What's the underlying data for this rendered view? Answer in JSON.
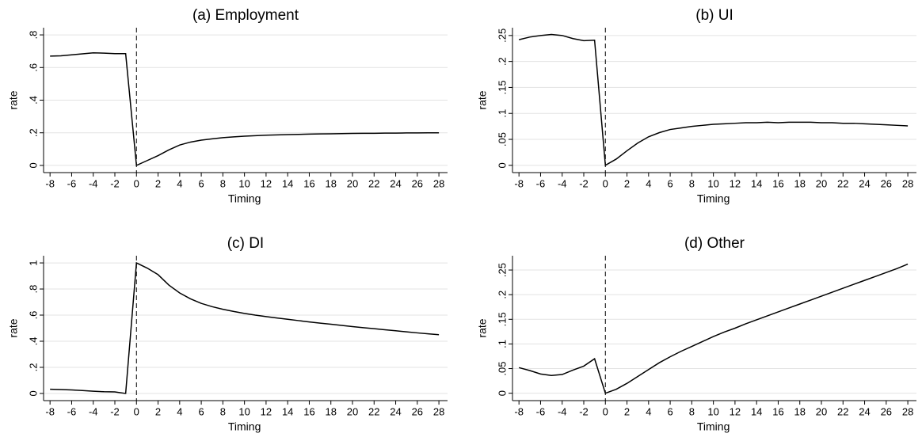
{
  "chart_data": [
    {
      "type": "line",
      "title": "(a) Employment",
      "xlabel": "Timing",
      "ylabel": "rate",
      "color": "#000000",
      "grid": true,
      "vline": 0,
      "x": [
        -8,
        -7,
        -6,
        -5,
        -4,
        -3,
        -2,
        -1,
        0,
        1,
        2,
        3,
        4,
        5,
        6,
        7,
        8,
        9,
        10,
        11,
        12,
        13,
        14,
        15,
        16,
        17,
        18,
        19,
        20,
        21,
        22,
        23,
        24,
        25,
        26,
        27,
        28
      ],
      "values": [
        0.67,
        0.672,
        0.678,
        0.684,
        0.69,
        0.688,
        0.685,
        0.685,
        0.0,
        0.03,
        0.06,
        0.095,
        0.125,
        0.143,
        0.155,
        0.163,
        0.17,
        0.175,
        0.179,
        0.182,
        0.185,
        0.187,
        0.189,
        0.19,
        0.192,
        0.193,
        0.194,
        0.195,
        0.196,
        0.197,
        0.197,
        0.198,
        0.198,
        0.199,
        0.199,
        0.2,
        0.2
      ],
      "xlim": [
        -8.6,
        28.8
      ],
      "xticks": [
        -8,
        -6,
        -4,
        -2,
        0,
        2,
        4,
        6,
        8,
        10,
        12,
        14,
        16,
        18,
        20,
        22,
        24,
        26,
        28
      ],
      "ylim": [
        -0.044,
        0.844
      ],
      "yticks": [
        0,
        {
          "value": 0.2,
          "label": ".2"
        },
        {
          "value": 0.4,
          "label": ".4"
        },
        {
          "value": 0.6,
          "label": ".6"
        },
        {
          "value": 0.8,
          "label": ".8"
        }
      ]
    },
    {
      "type": "line",
      "title": "(b) UI",
      "xlabel": "Timing",
      "ylabel": "rate",
      "color": "#000000",
      "grid": true,
      "vline": 0,
      "x": [
        -8,
        -7,
        -6,
        -5,
        -4,
        -3,
        -2,
        -1,
        0,
        1,
        2,
        3,
        4,
        5,
        6,
        7,
        8,
        9,
        10,
        11,
        12,
        13,
        14,
        15,
        16,
        17,
        18,
        19,
        20,
        21,
        22,
        23,
        24,
        25,
        26,
        27,
        28
      ],
      "values": [
        0.242,
        0.247,
        0.25,
        0.252,
        0.25,
        0.244,
        0.24,
        0.241,
        0.0,
        0.012,
        0.028,
        0.043,
        0.055,
        0.063,
        0.069,
        0.072,
        0.075,
        0.077,
        0.079,
        0.08,
        0.081,
        0.082,
        0.082,
        0.083,
        0.082,
        0.083,
        0.083,
        0.083,
        0.082,
        0.082,
        0.081,
        0.081,
        0.08,
        0.079,
        0.078,
        0.077,
        0.076
      ],
      "xlim": [
        -8.6,
        28.8
      ],
      "xticks": [
        -8,
        -6,
        -4,
        -2,
        0,
        2,
        4,
        6,
        8,
        10,
        12,
        14,
        16,
        18,
        20,
        22,
        24,
        26,
        28
      ],
      "ylim": [
        -0.014,
        0.265
      ],
      "yticks": [
        0,
        {
          "value": 0.05,
          "label": ".05"
        },
        {
          "value": 0.1,
          "label": ".1"
        },
        {
          "value": 0.15,
          "label": ".15"
        },
        {
          "value": 0.2,
          "label": ".2"
        },
        {
          "value": 0.25,
          "label": ".25"
        }
      ]
    },
    {
      "type": "line",
      "title": "(c) DI",
      "xlabel": "Timing",
      "ylabel": "rate",
      "color": "#000000",
      "grid": true,
      "vline": 0,
      "x": [
        -8,
        -7,
        -6,
        -5,
        -4,
        -3,
        -2,
        -1,
        0,
        1,
        2,
        3,
        4,
        5,
        6,
        7,
        8,
        9,
        10,
        11,
        12,
        13,
        14,
        15,
        16,
        17,
        18,
        19,
        20,
        21,
        22,
        23,
        24,
        25,
        26,
        27,
        28
      ],
      "values": [
        0.032,
        0.03,
        0.027,
        0.022,
        0.017,
        0.013,
        0.012,
        0.0,
        1.0,
        0.96,
        0.91,
        0.83,
        0.77,
        0.725,
        0.69,
        0.665,
        0.645,
        0.628,
        0.613,
        0.6,
        0.589,
        0.578,
        0.568,
        0.558,
        0.548,
        0.539,
        0.53,
        0.521,
        0.512,
        0.504,
        0.496,
        0.488,
        0.48,
        0.472,
        0.464,
        0.457,
        0.45
      ],
      "xlim": [
        -8.6,
        28.8
      ],
      "xticks": [
        -8,
        -6,
        -4,
        -2,
        0,
        2,
        4,
        6,
        8,
        10,
        12,
        14,
        16,
        18,
        20,
        22,
        24,
        26,
        28
      ],
      "ylim": [
        -0.055,
        1.055
      ],
      "yticks": [
        0,
        {
          "value": 0.2,
          "label": ".2"
        },
        {
          "value": 0.4,
          "label": ".4"
        },
        {
          "value": 0.6,
          "label": ".6"
        },
        {
          "value": 0.8,
          "label": ".8"
        },
        1
      ]
    },
    {
      "type": "line",
      "title": "(d) Other",
      "xlabel": "Timing",
      "ylabel": "rate",
      "color": "#000000",
      "grid": true,
      "vline": 0,
      "x": [
        -8,
        -7,
        -6,
        -5,
        -4,
        -3,
        -2,
        -1,
        0,
        1,
        2,
        3,
        4,
        5,
        6,
        7,
        8,
        9,
        10,
        11,
        12,
        13,
        14,
        15,
        16,
        17,
        18,
        19,
        20,
        21,
        22,
        23,
        24,
        25,
        26,
        27,
        28
      ],
      "values": [
        0.052,
        0.046,
        0.039,
        0.036,
        0.038,
        0.047,
        0.055,
        0.07,
        0.0,
        0.008,
        0.02,
        0.034,
        0.048,
        0.062,
        0.074,
        0.085,
        0.095,
        0.105,
        0.115,
        0.124,
        0.132,
        0.141,
        0.149,
        0.157,
        0.165,
        0.173,
        0.181,
        0.189,
        0.197,
        0.205,
        0.213,
        0.221,
        0.229,
        0.237,
        0.245,
        0.253,
        0.262
      ],
      "xlim": [
        -8.6,
        28.8
      ],
      "xticks": [
        -8,
        -6,
        -4,
        -2,
        0,
        2,
        4,
        6,
        8,
        10,
        12,
        14,
        16,
        18,
        20,
        22,
        24,
        26,
        28
      ],
      "ylim": [
        -0.015,
        0.279
      ],
      "yticks": [
        0,
        {
          "value": 0.05,
          "label": ".05"
        },
        {
          "value": 0.1,
          "label": ".1"
        },
        {
          "value": 0.15,
          "label": ".15"
        },
        {
          "value": 0.2,
          "label": ".2"
        },
        {
          "value": 0.25,
          "label": ".25"
        }
      ]
    }
  ]
}
